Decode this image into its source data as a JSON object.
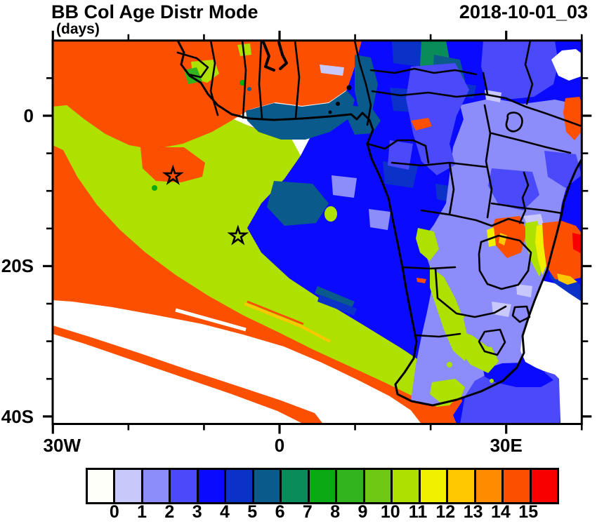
{
  "header": {
    "title": "BB Col Age Distr Mode",
    "subtitle": "(days)",
    "timestamp": "2018-10-01_03"
  },
  "axes": {
    "x": {
      "ticks": [
        {
          "label": "30W",
          "lon": -30
        },
        {
          "label": "0",
          "lon": 0
        },
        {
          "label": "30E",
          "lon": 30
        }
      ],
      "minor_lons": [
        -20,
        -10,
        10,
        20,
        40
      ],
      "range_lon": [
        -30,
        40
      ]
    },
    "y": {
      "ticks": [
        {
          "label": "0",
          "lat": 0
        },
        {
          "label": "20S",
          "lat": -20
        },
        {
          "label": "40S",
          "lat": -40
        }
      ],
      "minor_lats": [
        5,
        -5,
        -10,
        -15,
        -25,
        -30,
        -35
      ],
      "range_lat": [
        10,
        -41
      ]
    }
  },
  "colorbar": {
    "labels": [
      "0",
      "1",
      "2",
      "3",
      "4",
      "5",
      "6",
      "7",
      "8",
      "9",
      "10",
      "11",
      "12",
      "13",
      "14",
      "15"
    ],
    "colors": [
      "#FFFFFA",
      "#C8C8FA",
      "#8C8CFA",
      "#4A4AFA",
      "#0A0AFF",
      "#0A32C8",
      "#0A5A8C",
      "#0A8C5A",
      "#0AAA14",
      "#32B41E",
      "#6EC814",
      "#AEE000",
      "#F0F000",
      "#FFC800",
      "#FF8C00",
      "#FC4F00",
      "#F80000"
    ]
  },
  "chart_data": {
    "type": "heatmap",
    "title": "BB Col Age Distr Mode",
    "units": "days",
    "timestamp": "2018-10-01_03",
    "geography": "Africa with adjacent South Atlantic and southwest Indian Ocean, coastlines and country borders overlaid",
    "lon_range": [
      -30,
      40
    ],
    "lat_range": [
      -41,
      10
    ],
    "levels": [
      0,
      1,
      2,
      3,
      4,
      5,
      6,
      7,
      8,
      9,
      10,
      11,
      12,
      13,
      14,
      15
    ],
    "palette": [
      "#FFFFFA",
      "#C8C8FA",
      "#8C8CFA",
      "#4A4AFA",
      "#0A0AFF",
      "#0A32C8",
      "#0A5A8C",
      "#0A8C5A",
      "#0AAA14",
      "#32B41E",
      "#6EC814",
      "#AEE000",
      "#F0F000",
      "#FFC800",
      "#FF8C00",
      "#FC4F00",
      "#F80000"
    ],
    "legend_position": "bottom",
    "markers": [
      {
        "symbol": "star",
        "lon": -14.1,
        "lat": -8.0
      },
      {
        "symbol": "star",
        "lon": -5.5,
        "lat": -16.0
      }
    ],
    "regions": [
      {
        "value_days": "14-15",
        "color": "#FC4F00",
        "where": "tropical North Atlantic, West African coast and a long diagonal plume band across the far South Atlantic"
      },
      {
        "value_days": "10-11",
        "color": "#AEE000",
        "where": "large aged-smoke wedge over the SE tropical Atlantic off Angola/Namibia reaching the South African west coast; band through Botswana into interior South Africa"
      },
      {
        "value_days": "3-4",
        "color": "#0A0AFF",
        "where": "Congo basin, Angola and near-coastal outflow over the Gulf of Guinea / Angola coast; ocean just south of South Africa"
      },
      {
        "value_days": "4-5",
        "color": "#0A32C8",
        "where": "patches inside the Congo-basin blue region and a band off the Kenyan coast"
      },
      {
        "value_days": "5-6",
        "color": "#0A5A8C",
        "where": "transition band between fresh (blue) and aged (green) smoke along the Gulf of Guinea coast"
      },
      {
        "value_days": "6-7",
        "color": "#0A8C5A",
        "where": "small patches over South Sudan / northern DRC"
      },
      {
        "value_days": "1-2",
        "color": "#8C8CFA",
        "where": "East Africa and southeastern Africa interior"
      },
      {
        "value_days": "2-3",
        "color": "#4A4AFA",
        "where": "Horn-of-Africa band, patches over Tanzania/Mozambique and SW Indian Ocean south of Africa"
      },
      {
        "value_days": "0-1",
        "color": "#C8C8FA",
        "where": "small dabs over Kenya, KwaZulu-Natal and near the Mozambique channel"
      },
      {
        "value_days": "<0 / none",
        "color": "#FFFFFF",
        "where": "SW Atlantic corner, Indian Ocean off the KwaZulu-Natal coast and a patch over the Horn of Africa"
      },
      {
        "value_days": "11-15 (fresh fire mix)",
        "color": "#FC4F00 / #FFC800 / #F0F000 / #F80000",
        "where": "hotspots east of Lake Victoria, NE of Zimbabwe and along the Mozambique-channel coast"
      }
    ]
  }
}
